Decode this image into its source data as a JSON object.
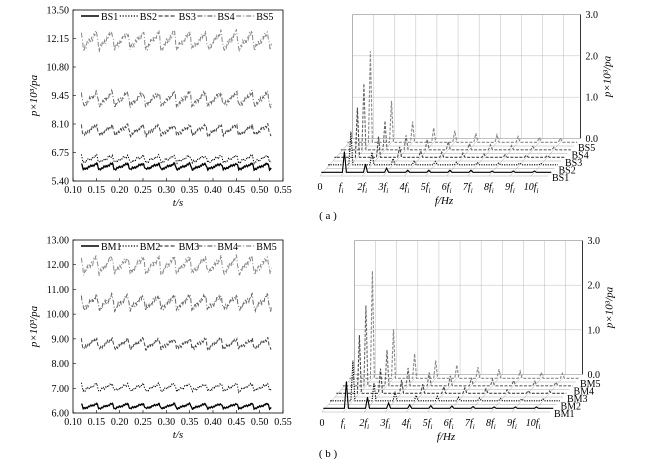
{
  "figure": {
    "caption_a": "( a )",
    "caption_b": "( b )"
  },
  "chart_data": [
    {
      "id": "a-time",
      "type": "line",
      "xlabel": "t/s",
      "ylabel": "p×10³/pa",
      "xlim": [
        0.1,
        0.55
      ],
      "ylim": [
        5.4,
        13.5
      ],
      "xticks": [
        "0.10",
        "0.15",
        "0.20",
        "0.25",
        "0.30",
        "0.35",
        "0.40",
        "0.45",
        "0.50",
        "0.55"
      ],
      "yticks": [
        "5.40",
        "6.75",
        "8.10",
        "9.45",
        "10.80",
        "12.15",
        "13.50"
      ],
      "legend": [
        "BS1",
        "BS2",
        "BS3",
        "BS4",
        "BS5"
      ],
      "series": [
        {
          "name": "BS1",
          "baseline": 6.05,
          "amplitude": 0.35,
          "style": "solid",
          "color": "#000000"
        },
        {
          "name": "BS2",
          "baseline": 6.4,
          "amplitude": 0.4,
          "style": "dotted",
          "color": "#000000"
        },
        {
          "name": "BS3",
          "baseline": 7.75,
          "amplitude": 0.6,
          "style": "dashed",
          "color": "#444444"
        },
        {
          "name": "BS4",
          "baseline": 9.2,
          "amplitude": 0.8,
          "style": "dashdot",
          "color": "#666666"
        },
        {
          "name": "BS5",
          "baseline": 11.95,
          "amplitude": 1.0,
          "style": "dashdot",
          "color": "#888888"
        }
      ]
    },
    {
      "id": "a-freq",
      "type": "bar",
      "xlabel": "f/Hz",
      "ylabel": "p×10³/pa",
      "zlim": [
        0,
        3.0
      ],
      "zticks": [
        "0.0",
        "1.0",
        "2.0",
        "3.0"
      ],
      "xticks": [
        "0",
        "f",
        "2f",
        "3f",
        "4f",
        "5f",
        "6f",
        "7f",
        "8f",
        "9f",
        "10f"
      ],
      "tick_sub": "i",
      "depth_labels": [
        "BS1",
        "BS2",
        "BS3",
        "BS4",
        "BS5"
      ],
      "series": [
        {
          "name": "BS1",
          "values": [
            0.0,
            0.5,
            0.2,
            0.1,
            0.05,
            0.05,
            0.05,
            0.05,
            0.03,
            0.03,
            0.03
          ],
          "color": "#000000"
        },
        {
          "name": "BS2",
          "values": [
            0.0,
            0.8,
            0.3,
            0.15,
            0.1,
            0.08,
            0.06,
            0.05,
            0.04,
            0.04,
            0.03
          ],
          "color": "#000000"
        },
        {
          "name": "BS3",
          "values": [
            0.0,
            1.2,
            0.5,
            0.25,
            0.15,
            0.12,
            0.1,
            0.08,
            0.06,
            0.05,
            0.04
          ],
          "color": "#444444"
        },
        {
          "name": "BS4",
          "values": [
            0.0,
            1.6,
            0.7,
            0.35,
            0.25,
            0.2,
            0.15,
            0.12,
            0.1,
            0.08,
            0.06
          ],
          "color": "#666666"
        },
        {
          "name": "BS5",
          "values": [
            0.0,
            2.2,
            1.0,
            0.5,
            0.35,
            0.28,
            0.22,
            0.18,
            0.14,
            0.12,
            0.1
          ],
          "color": "#888888"
        }
      ]
    },
    {
      "id": "b-time",
      "type": "line",
      "xlabel": "t/s",
      "ylabel": "p×10³/pa",
      "xlim": [
        0.1,
        0.55
      ],
      "ylim": [
        6.0,
        13.0
      ],
      "xticks": [
        "0.10",
        "0.15",
        "0.20",
        "0.25",
        "0.30",
        "0.35",
        "0.40",
        "0.45",
        "0.50",
        "0.55"
      ],
      "yticks": [
        "6.00",
        "7.00",
        "8.00",
        "9.00",
        "10.00",
        "11.00",
        "12.00",
        "13.00"
      ],
      "legend": [
        "BM1",
        "BM2",
        "BM3",
        "BM4",
        "BM5"
      ],
      "series": [
        {
          "name": "BM1",
          "baseline": 6.25,
          "amplitude": 0.25,
          "style": "solid",
          "color": "#000000"
        },
        {
          "name": "BM2",
          "baseline": 7.0,
          "amplitude": 0.35,
          "style": "dotted",
          "color": "#000000"
        },
        {
          "name": "BM3",
          "baseline": 8.75,
          "amplitude": 0.5,
          "style": "dashed",
          "color": "#444444"
        },
        {
          "name": "BM4",
          "baseline": 10.4,
          "amplitude": 0.7,
          "style": "dashdot",
          "color": "#666666"
        },
        {
          "name": "BM5",
          "baseline": 11.9,
          "amplitude": 0.8,
          "style": "dashdot",
          "color": "#888888"
        }
      ]
    },
    {
      "id": "b-freq",
      "type": "bar",
      "xlabel": "f/Hz",
      "ylabel": "p×10³/pa",
      "zlim": [
        0,
        3.0
      ],
      "zticks": [
        "0.0",
        "1.0",
        "2.0",
        "3.0"
      ],
      "xticks": [
        "0",
        "f",
        "2f",
        "3f",
        "4f",
        "5f",
        "6f",
        "7f",
        "8f",
        "9f",
        "10f"
      ],
      "tick_sub": "i",
      "depth_labels": [
        "BM1",
        "BM2",
        "BM3",
        "BM4",
        "BM5"
      ],
      "series": [
        {
          "name": "BM1",
          "values": [
            0.0,
            0.6,
            0.25,
            0.12,
            0.08,
            0.06,
            0.05,
            0.04,
            0.03,
            0.03,
            0.03
          ],
          "color": "#000000"
        },
        {
          "name": "BM2",
          "values": [
            0.0,
            0.9,
            0.4,
            0.2,
            0.12,
            0.1,
            0.08,
            0.06,
            0.05,
            0.04,
            0.04
          ],
          "color": "#000000"
        },
        {
          "name": "BM3",
          "values": [
            0.0,
            1.3,
            0.55,
            0.3,
            0.2,
            0.15,
            0.12,
            0.1,
            0.08,
            0.06,
            0.05
          ],
          "color": "#444444"
        },
        {
          "name": "BM4",
          "values": [
            0.0,
            1.8,
            0.8,
            0.4,
            0.3,
            0.22,
            0.18,
            0.14,
            0.12,
            0.1,
            0.08
          ],
          "color": "#666666"
        },
        {
          "name": "BM5",
          "values": [
            0.0,
            2.4,
            1.1,
            0.55,
            0.4,
            0.3,
            0.25,
            0.2,
            0.16,
            0.13,
            0.11
          ],
          "color": "#888888"
        }
      ]
    }
  ]
}
